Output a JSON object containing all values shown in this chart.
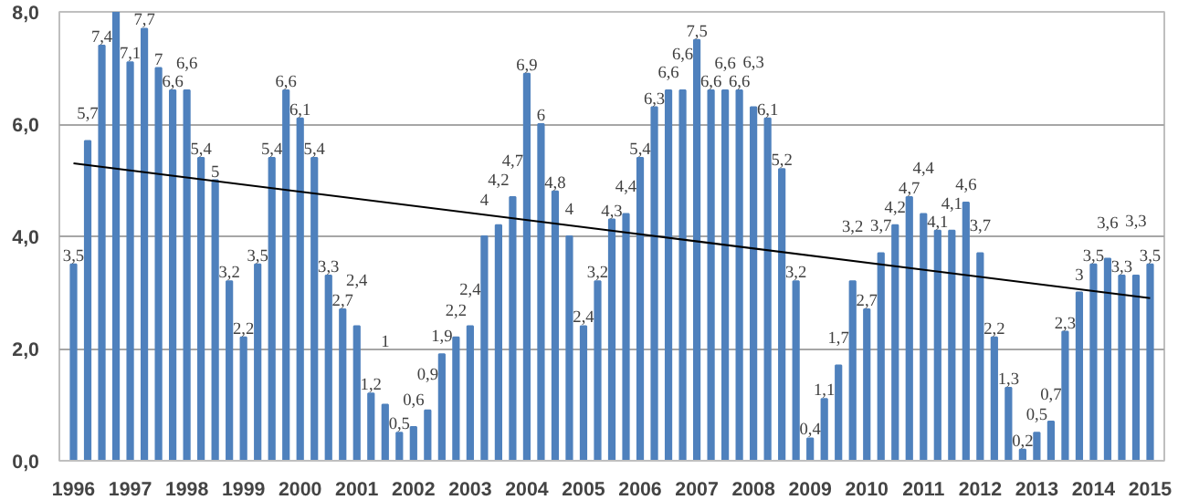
{
  "chart_data": {
    "type": "bar",
    "x": [
      "1996-01",
      "1996-04",
      "1996-07",
      "1996-10",
      "1997-01",
      "1997-04",
      "1997-07",
      "1997-10",
      "1998-01",
      "1998-04",
      "1998-07",
      "1998-10",
      "1999-01",
      "1999-04",
      "1999-07",
      "1999-10",
      "2000-01",
      "2000-04",
      "2000-07",
      "2000-10",
      "2001-01",
      "2001-04",
      "2001-07",
      "2001-10",
      "2002-01",
      "2002-04",
      "2002-07",
      "2002-10",
      "2003-01",
      "2003-04",
      "2003-07",
      "2003-10",
      "2004-01",
      "2004-04",
      "2004-07",
      "2004-10",
      "2005-01",
      "2005-04",
      "2005-07",
      "2005-10",
      "2006-01",
      "2006-04",
      "2006-07",
      "2006-10",
      "2007-01",
      "2007-04",
      "2007-07",
      "2007-10",
      "2008-01",
      "2008-04",
      "2008-07",
      "2008-10",
      "2009-01",
      "2009-04",
      "2009-07",
      "2009-10",
      "2010-01",
      "2010-04",
      "2010-07",
      "2010-10",
      "2011-01",
      "2011-04",
      "2011-07",
      "2011-10",
      "2012-01",
      "2012-04",
      "2012-07",
      "2012-10",
      "2013-01",
      "2013-04",
      "2013-07",
      "2013-10",
      "2014-01",
      "2014-04",
      "2014-07",
      "2014-10",
      "2015-01"
    ],
    "xlim": [
      "1995-10",
      "2015-04"
    ],
    "xticks": [
      "1996",
      "1997",
      "1998",
      "1999",
      "2000",
      "2001",
      "2002",
      "2003",
      "2004",
      "2005",
      "2006",
      "2007",
      "2008",
      "2009",
      "2010",
      "2011",
      "2012",
      "2013",
      "2014",
      "2015"
    ],
    "series": [
      {
        "color": "#4f81bd",
        "values": [
          3.5,
          5.7,
          7.4,
          8.0,
          7.1,
          7.7,
          7,
          6.6,
          6.6,
          5.4,
          5,
          3.2,
          2.2,
          3.5,
          5.4,
          6.6,
          6.1,
          5.4,
          3.3,
          2.7,
          2.4,
          1.2,
          1,
          0.5,
          0.6,
          0.9,
          1.9,
          2.2,
          2.4,
          4,
          4.2,
          4.7,
          6.9,
          6,
          4.8,
          4,
          2.4,
          3.2,
          4.3,
          4.4,
          5.4,
          6.3,
          6.6,
          6.6,
          7.5,
          6.6,
          6.6,
          6.6,
          6.3,
          6.1,
          5.2,
          3.2,
          0.4,
          1.1,
          1.7,
          3.2,
          2.7,
          3.7,
          4.2,
          4.7,
          4.4,
          4.1,
          4.1,
          4.6,
          3.7,
          2.2,
          1.3,
          0.2,
          0.5,
          0.7,
          2.3,
          3,
          3.5,
          3.6,
          3.3,
          3.3,
          3.5
        ],
        "value_labels": [
          "3,5",
          "5,7",
          "7,4",
          null,
          "7,1",
          "7,7",
          "7",
          "6,6",
          "6,6",
          "5,4",
          "5",
          "3,2",
          "2,2",
          "3,5",
          "5,4",
          "6,6",
          "6,1",
          "5,4",
          "3,3",
          "2,7",
          "2,4",
          "1,2",
          "1",
          "0,5",
          "0,6",
          "0,9",
          "1,9",
          "2,2",
          "2,4",
          "4",
          "4,2",
          "4,7",
          "6,9",
          "6",
          "4,8",
          "4",
          "2,4",
          "3,2",
          "4,3",
          "4,4",
          "5,4",
          "6,3",
          "6,6",
          "6,6",
          "7,5",
          "6,6",
          "6,6",
          "6,6",
          "6,3",
          "6,1",
          "5,2",
          "3,2",
          "0,4",
          "1,1",
          "1,7",
          "3,2",
          "2,7",
          "3,7",
          "4,2",
          "4,7",
          "4,4",
          "4,1",
          "4,1",
          "4,6",
          "3,7",
          "2,2",
          "1,3",
          "0,2",
          "0,5",
          "0,7",
          "2,3",
          "3",
          "3,5",
          "3,6",
          "3,3",
          "3,3",
          "3,5"
        ]
      },
      {
        "type": "line",
        "x": [
          "1996",
          "2015"
        ],
        "values": [
          5.3,
          2.9
        ],
        "color": "#000000"
      }
    ],
    "ylim": [
      0,
      8
    ],
    "yticks": [
      {
        "value": 0,
        "label": "0,0"
      },
      {
        "value": 2,
        "label": "2,0"
      },
      {
        "value": 4,
        "label": "4,0"
      },
      {
        "value": 6,
        "label": "6,0"
      },
      {
        "value": 8,
        "label": "8,0"
      }
    ],
    "grid": "y"
  }
}
